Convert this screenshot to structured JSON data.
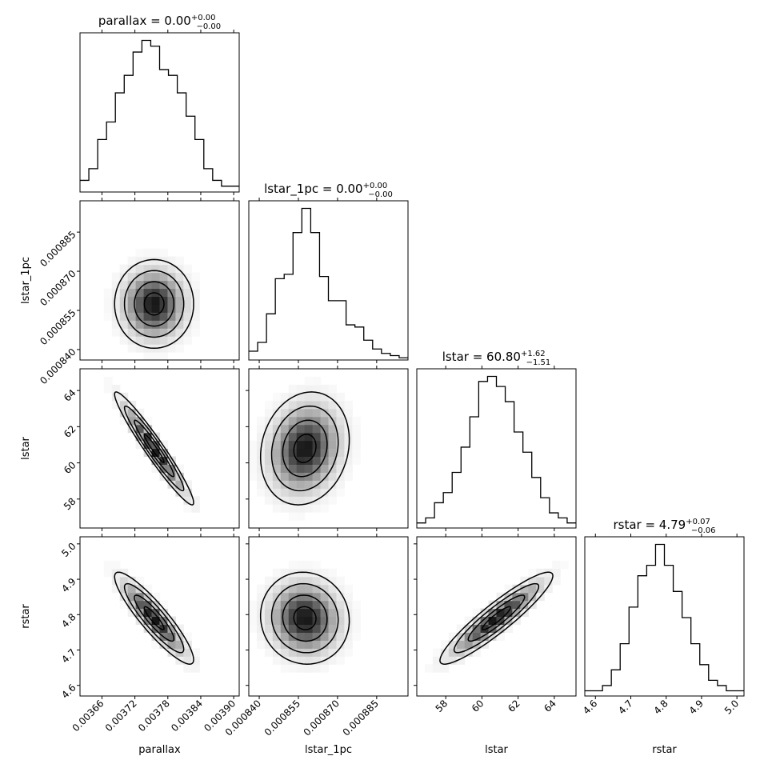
{
  "chart_data": {
    "type": "corner",
    "parameters": [
      "parallax",
      "lstar_1pc",
      "lstar",
      "rstar"
    ],
    "axis_labels": [
      "parallax",
      "lstar_1pc",
      "lstar",
      "rstar"
    ],
    "titles": [
      {
        "name": "parallax",
        "value": "0.00",
        "plus": "+0.00",
        "minus": "−0.00"
      },
      {
        "name": "lstar_1pc",
        "value": "0.00",
        "plus": "+0.00",
        "minus": "−0.00"
      },
      {
        "name": "lstar",
        "value": "60.80",
        "plus": "+1.62",
        "minus": "−1.51"
      },
      {
        "name": "rstar",
        "value": "4.79",
        "plus": "+0.07",
        "minus": "−0.06"
      }
    ],
    "ranges": [
      [
        0.00362,
        0.00391
      ],
      [
        0.000836,
        0.000897
      ],
      [
        56.4,
        65.2
      ],
      [
        4.57,
        5.02
      ]
    ],
    "ticks": [
      [
        "0.00366",
        "0.00372",
        "0.00378",
        "0.00384",
        "0.00390"
      ],
      [
        "0.000840",
        "0.000855",
        "0.000870",
        "0.000885"
      ],
      [
        "58",
        "60",
        "62",
        "64"
      ],
      [
        "4.6",
        "4.7",
        "4.8",
        "4.9",
        "5.0"
      ]
    ],
    "medians": [
      0.003755,
      0.0008575,
      60.8,
      4.79
    ],
    "sigmas": [
      3.6e-05,
      8.5e-06,
      1.56,
      0.065
    ],
    "correlations": [
      [
        1.0,
        0.0,
        -0.96,
        -0.9
      ],
      [
        0.0,
        1.0,
        0.15,
        -0.05
      ],
      [
        -0.96,
        0.15,
        1.0,
        0.92
      ],
      [
        -0.9,
        -0.05,
        0.92,
        1.0
      ]
    ],
    "histograms": [
      [
        2,
        4,
        9,
        12,
        17,
        20,
        24,
        26,
        25,
        21,
        20,
        17,
        13,
        9,
        4,
        2,
        1,
        1
      ],
      [
        4,
        8,
        21,
        37,
        39,
        58,
        69,
        58,
        38,
        27,
        27,
        16,
        15,
        9,
        5,
        3,
        2,
        1
      ],
      [
        1,
        2,
        5,
        7,
        11,
        16,
        22,
        29,
        30,
        28,
        25,
        19,
        15,
        10,
        6,
        3,
        2,
        1
      ],
      [
        1,
        1,
        2,
        5,
        10,
        17,
        23,
        25,
        29,
        25,
        20,
        15,
        10,
        6,
        3,
        2,
        1,
        1
      ]
    ],
    "contour_levels_sigma": [
      0.5,
      1.0,
      1.5,
      2.0
    ]
  }
}
